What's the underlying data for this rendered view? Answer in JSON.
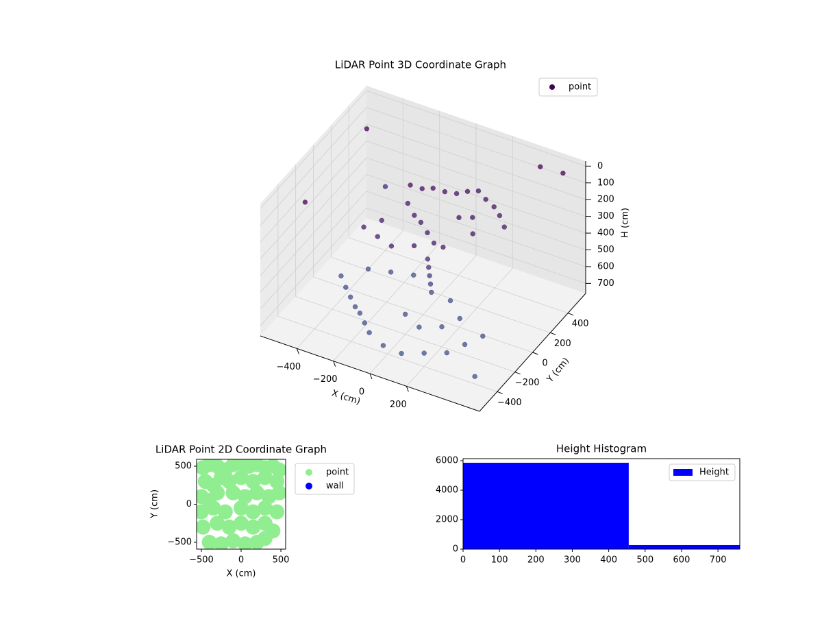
{
  "chart_data": [
    {
      "type": "scatter3d",
      "title": "LiDAR Point 3D Coordinate Graph",
      "xlabel": "X (cm)",
      "ylabel": "Y (cm)",
      "zlabel": "H (cm)",
      "xlim": [
        -600,
        600
      ],
      "ylim": [
        -600,
        600
      ],
      "zlim": [
        760,
        -30
      ],
      "xticks": [
        {
          "value": -400,
          "label": "−400"
        },
        {
          "value": -200,
          "label": "−200"
        },
        0,
        200
      ],
      "yticks": [
        {
          "value": -400,
          "label": "−400"
        },
        {
          "value": -200,
          "label": "−200"
        },
        0,
        200,
        400
      ],
      "zticks": [
        0,
        100,
        200,
        300,
        400,
        500,
        600,
        700
      ],
      "grid": true,
      "legend": "upper right",
      "series": [
        {
          "name": "point",
          "color": "#440154",
          "x": [
            -200,
            -150,
            -100,
            -50,
            0,
            50,
            100,
            150,
            200,
            250,
            300,
            -180,
            -120,
            -60,
            0,
            60,
            120,
            -250,
            -300,
            -200,
            -100,
            0,
            100,
            150,
            200,
            50,
            60,
            70,
            80,
            90,
            -400,
            -350,
            -300,
            -250,
            -200,
            -150,
            -100,
            0,
            100,
            200,
            300,
            350,
            400,
            -300,
            -200,
            -100,
            0,
            100,
            200,
            250,
            150,
            -550,
            -500,
            500,
            400,
            -400,
            550
          ],
          "y": [
            270,
            300,
            320,
            350,
            380,
            400,
            420,
            400,
            390,
            350,
            300,
            200,
            150,
            100,
            50,
            0,
            -20,
            50,
            -50,
            -100,
            -150,
            -100,
            200,
            250,
            150,
            -50,
            -60,
            -70,
            -80,
            -90,
            -100,
            -150,
            -200,
            -250,
            -300,
            -350,
            -400,
            -450,
            -450,
            -400,
            -350,
            -250,
            -150,
            0,
            50,
            100,
            -200,
            -250,
            -200,
            -100,
            0,
            500,
            -300,
            550,
            500,
            400,
            -550
          ],
          "z": [
            220,
            240,
            230,
            250,
            260,
            240,
            230,
            250,
            270,
            280,
            300,
            280,
            300,
            290,
            300,
            310,
            300,
            320,
            320,
            310,
            300,
            290,
            260,
            270,
            290,
            380,
            420,
            460,
            500,
            540,
            620,
            640,
            650,
            660,
            650,
            660,
            670,
            680,
            690,
            680,
            670,
            660,
            650,
            600,
            610,
            620,
            640,
            650,
            640,
            630,
            620,
            150,
            100,
            50,
            20,
            380,
            600
          ]
        }
      ]
    },
    {
      "type": "scatter",
      "title": "LiDAR Point 2D Coordinate Graph",
      "xlabel": "X (cm)",
      "ylabel": "Y (cm)",
      "xlim": [
        -560,
        560
      ],
      "ylim": [
        -590,
        590
      ],
      "xticks": [
        {
          "value": -500,
          "label": "−500"
        },
        0,
        500
      ],
      "yticks": [
        {
          "value": -500,
          "label": "−500"
        },
        0,
        500
      ],
      "legend": "outside right",
      "series": [
        {
          "name": "point",
          "color": "#90ee90",
          "x": [
            -480,
            -400,
            -300,
            -200,
            -100,
            0,
            100,
            200,
            300,
            400,
            480,
            -450,
            -350,
            -250,
            -150,
            0,
            150,
            300,
            450,
            -500,
            -400,
            -300,
            -100,
            50,
            200,
            350,
            480,
            -500,
            -350,
            -200,
            0,
            150,
            300,
            450,
            -480,
            -300,
            -150,
            0,
            150,
            300,
            400,
            -400,
            -250,
            -100,
            50,
            200,
            300
          ],
          "y": [
            480,
            520,
            500,
            450,
            520,
            540,
            500,
            520,
            480,
            500,
            450,
            300,
            250,
            350,
            300,
            350,
            300,
            350,
            300,
            100,
            50,
            150,
            150,
            100,
            150,
            100,
            150,
            -100,
            -50,
            -100,
            -50,
            -100,
            -50,
            -100,
            -300,
            -250,
            -300,
            -250,
            -300,
            -250,
            -350,
            -500,
            -520,
            -480,
            -520,
            -500,
            -450
          ]
        },
        {
          "name": "wall",
          "color": "#0000ff",
          "x": [],
          "y": []
        }
      ]
    },
    {
      "type": "histogram",
      "title": "Height Histogram",
      "bins": [
        0,
        455,
        760
      ],
      "counts": [
        5860,
        280
      ],
      "xlim": [
        0,
        760
      ],
      "ylim": [
        0,
        6140
      ],
      "xticks": [
        0,
        100,
        200,
        300,
        400,
        500,
        600,
        700
      ],
      "yticks": [
        0,
        2000,
        4000,
        6000
      ],
      "legend": "upper right",
      "series": [
        {
          "name": "Height",
          "color": "#0000ff"
        }
      ]
    }
  ]
}
